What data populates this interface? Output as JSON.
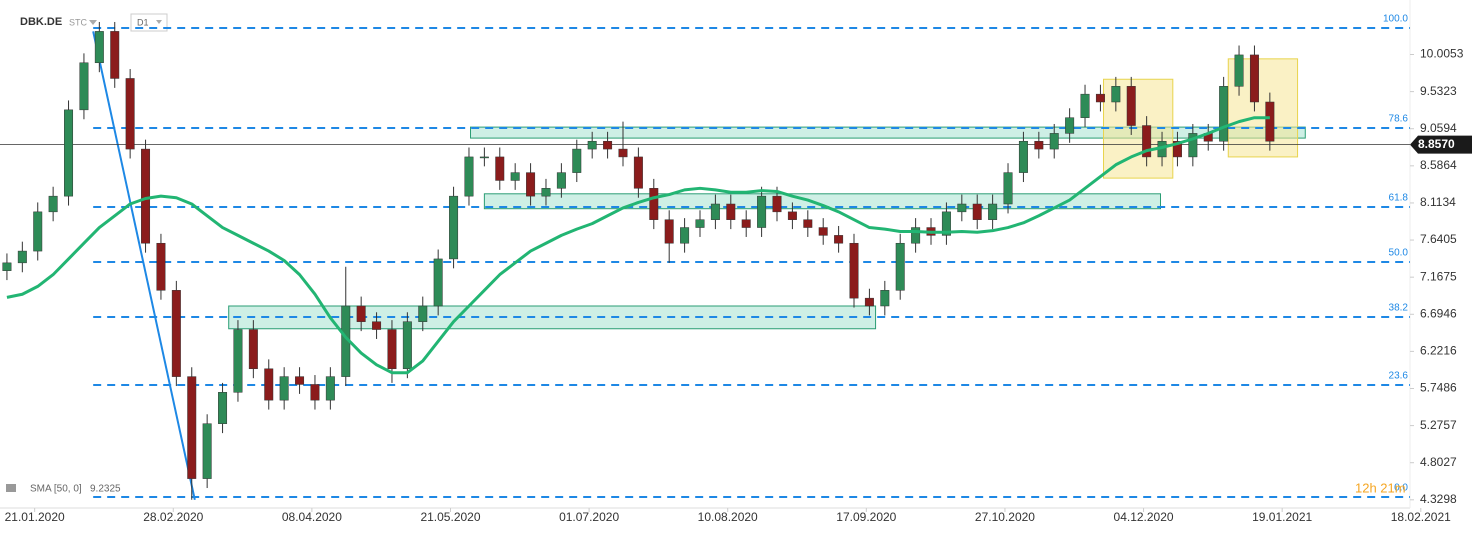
{
  "chart_data": {
    "type": "candlestick",
    "symbol": "DBK.DE",
    "tag": "STC",
    "interval": "D1",
    "up_color": "#2e8b57",
    "down_color": "#8b1c1c",
    "xlim": [
      -0.45,
      91.1
    ],
    "ylim": [
      4.2,
      10.7
    ],
    "xticks": [
      {
        "value": 1.8,
        "label": "21.01.2020"
      },
      {
        "value": 10.8,
        "label": "28.02.2020"
      },
      {
        "value": 19.8,
        "label": "08.04.2020"
      },
      {
        "value": 28.8,
        "label": "21.05.2020"
      },
      {
        "value": 37.8,
        "label": "01.07.2020"
      },
      {
        "value": 46.8,
        "label": "10.08.2020"
      },
      {
        "value": 55.8,
        "label": "17.09.2020"
      },
      {
        "value": 64.8,
        "label": "27.10.2020"
      },
      {
        "value": 73.8,
        "label": "04.12.2020"
      },
      {
        "value": 82.8,
        "label": "19.01.2021"
      },
      {
        "value": 91.8,
        "label": "18.02.2021"
      }
    ],
    "yticks": [
      10.0053,
      9.5323,
      9.0594,
      8.5864,
      8.1134,
      7.6405,
      7.1675,
      6.6946,
      6.2216,
      5.7486,
      5.2757,
      4.8027,
      4.3298
    ],
    "open": [
      7.25,
      7.35,
      7.5,
      8.0,
      8.2,
      9.3,
      9.9,
      10.3,
      9.7,
      8.8,
      7.6,
      7.0,
      5.9,
      4.6,
      5.3,
      5.7,
      6.5,
      6.0,
      5.6,
      5.9,
      5.8,
      5.6,
      5.9,
      6.8,
      6.6,
      6.5,
      6.0,
      6.6,
      6.8,
      7.4,
      8.2,
      8.7,
      8.7,
      8.4,
      8.5,
      8.2,
      8.3,
      8.5,
      8.8,
      8.9,
      8.8,
      8.7,
      8.3,
      7.9,
      7.6,
      7.8,
      7.9,
      8.1,
      7.9,
      7.8,
      8.2,
      8.0,
      7.9,
      7.8,
      7.7,
      7.6,
      6.9,
      6.8,
      7.0,
      7.6,
      7.8,
      7.7,
      8.0,
      8.1,
      7.9,
      8.1,
      8.5,
      8.9,
      8.8,
      9.0,
      9.2,
      9.5,
      9.4,
      9.6,
      9.1,
      8.7,
      8.9,
      8.7,
      9.0,
      8.9,
      9.6,
      10.0,
      9.4
    ],
    "high": [
      7.47,
      7.62,
      8.12,
      8.32,
      9.42,
      10.02,
      10.42,
      10.42,
      9.82,
      8.92,
      7.72,
      7.12,
      6.02,
      5.42,
      5.82,
      6.62,
      6.62,
      6.12,
      6.02,
      6.02,
      5.92,
      6.02,
      7.3,
      6.92,
      6.72,
      6.62,
      6.72,
      6.92,
      7.52,
      8.32,
      8.82,
      8.82,
      8.82,
      8.62,
      8.62,
      8.42,
      8.62,
      8.92,
      9.02,
      9.02,
      9.15,
      8.82,
      8.42,
      8.02,
      7.92,
      8.02,
      8.22,
      8.22,
      8.02,
      8.32,
      8.32,
      8.12,
      8.02,
      7.92,
      7.82,
      7.72,
      7.02,
      7.12,
      7.72,
      7.92,
      7.92,
      8.12,
      8.22,
      8.22,
      8.22,
      8.62,
      9.02,
      9.02,
      9.12,
      9.32,
      9.62,
      9.62,
      9.72,
      9.72,
      9.22,
      9.02,
      9.02,
      9.12,
      9.12,
      9.72,
      10.12,
      10.12,
      9.52
    ],
    "low": [
      7.13,
      7.23,
      7.38,
      7.88,
      8.08,
      9.18,
      9.78,
      9.58,
      8.68,
      7.48,
      6.88,
      5.78,
      4.33,
      4.48,
      5.18,
      5.58,
      5.88,
      5.48,
      5.48,
      5.68,
      5.48,
      5.48,
      5.78,
      6.48,
      6.38,
      5.82,
      5.88,
      6.48,
      6.68,
      7.28,
      8.08,
      8.58,
      8.28,
      8.28,
      8.08,
      8.08,
      8.18,
      8.38,
      8.68,
      8.68,
      8.58,
      8.18,
      7.78,
      7.35,
      7.48,
      7.68,
      7.78,
      7.78,
      7.68,
      7.68,
      7.88,
      7.78,
      7.68,
      7.58,
      7.48,
      6.78,
      6.68,
      6.68,
      6.88,
      7.48,
      7.58,
      7.58,
      7.88,
      7.78,
      7.78,
      7.98,
      8.38,
      8.68,
      8.68,
      8.88,
      9.08,
      9.28,
      9.28,
      8.98,
      8.58,
      8.58,
      8.58,
      8.58,
      8.78,
      8.78,
      9.48,
      9.28,
      8.78
    ],
    "close": [
      7.35,
      7.5,
      8.0,
      8.2,
      9.3,
      9.9,
      10.3,
      9.7,
      8.8,
      7.6,
      7.0,
      5.9,
      4.6,
      5.3,
      5.7,
      6.5,
      6.0,
      5.6,
      5.9,
      5.8,
      5.6,
      5.9,
      6.8,
      6.6,
      6.5,
      6.0,
      6.6,
      6.8,
      7.4,
      8.2,
      8.7,
      8.7,
      8.4,
      8.5,
      8.2,
      8.3,
      8.5,
      8.8,
      8.9,
      8.8,
      8.7,
      8.3,
      7.9,
      7.6,
      7.8,
      7.9,
      8.1,
      7.9,
      7.8,
      8.2,
      8.0,
      7.9,
      7.8,
      7.7,
      7.6,
      6.9,
      6.8,
      7.0,
      7.6,
      7.8,
      7.7,
      8.0,
      8.1,
      7.9,
      8.1,
      8.5,
      8.9,
      8.8,
      9.0,
      9.2,
      9.5,
      9.4,
      9.6,
      9.1,
      8.7,
      8.9,
      8.7,
      9.0,
      8.9,
      9.6,
      10.0,
      9.4,
      8.9
    ],
    "sma": {
      "label": "SMA [50, 0]",
      "last": 9.2325,
      "color": "#22b573",
      "values": [
        6.91,
        6.95,
        7.05,
        7.2,
        7.4,
        7.6,
        7.8,
        7.95,
        8.1,
        8.17,
        8.2,
        8.18,
        8.1,
        7.95,
        7.8,
        7.7,
        7.6,
        7.5,
        7.38,
        7.2,
        6.95,
        6.65,
        6.4,
        6.2,
        6.05,
        5.95,
        5.95,
        6.1,
        6.35,
        6.6,
        6.8,
        7.0,
        7.2,
        7.35,
        7.5,
        7.6,
        7.7,
        7.78,
        7.85,
        7.95,
        8.05,
        8.12,
        8.18,
        8.22,
        8.28,
        8.3,
        8.28,
        8.25,
        8.25,
        8.27,
        8.26,
        8.2,
        8.15,
        8.08,
        8.0,
        7.9,
        7.8,
        7.78,
        7.75,
        7.75,
        7.74,
        7.74,
        7.75,
        7.74,
        7.76,
        7.8,
        7.86,
        7.95,
        8.05,
        8.15,
        8.3,
        8.45,
        8.6,
        8.7,
        8.78,
        8.82,
        8.87,
        8.93,
        9.0,
        9.08,
        9.15,
        9.2,
        9.2
      ]
    },
    "last_price": {
      "value": 8.857,
      "label": "8.8570"
    },
    "trendline": {
      "x": [
        5.6,
        12.2
      ],
      "y": [
        10.3,
        4.33
      ],
      "color": "#1e88e5"
    },
    "fib_color": "#1e88e5",
    "fib_levels": [
      {
        "value": 10.343,
        "label": "100.0"
      },
      {
        "value": 9.069,
        "label": "78.6"
      },
      {
        "value": 8.062,
        "label": "61.8"
      },
      {
        "value": 7.361,
        "label": "50.0"
      },
      {
        "value": 6.66,
        "label": "38.2"
      },
      {
        "value": 5.793,
        "label": "23.6"
      },
      {
        "value": 4.366,
        "label": "0.0"
      }
    ],
    "zones": [
      {
        "x": [
          30.1,
          84.3
        ],
        "y": [
          8.94,
          9.08
        ],
        "color": "green"
      },
      {
        "x": [
          31.0,
          74.9
        ],
        "y": [
          8.04,
          8.23
        ],
        "color": "green"
      },
      {
        "x": [
          14.4,
          56.4
        ],
        "y": [
          6.51,
          6.8
        ],
        "color": "green"
      },
      {
        "x": [
          71.2,
          75.7
        ],
        "y": [
          8.43,
          9.69
        ],
        "color": "yellow"
      },
      {
        "x": [
          79.3,
          83.8
        ],
        "y": [
          8.7,
          9.95
        ],
        "color": "yellow"
      }
    ],
    "timer": "12h 21m"
  }
}
